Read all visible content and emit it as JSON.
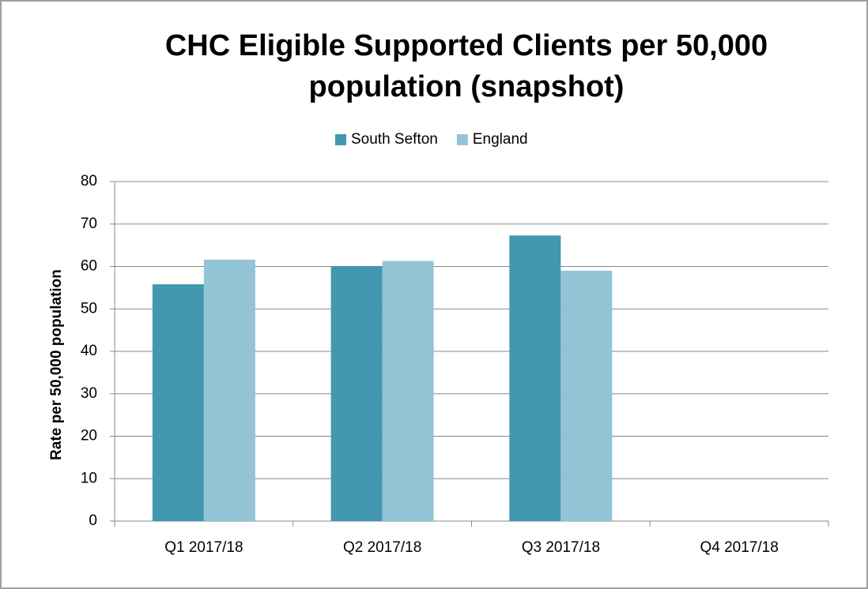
{
  "chart_data": {
    "type": "bar",
    "title": "CHC Eligible Supported Clients per 50,000 population (snapshot)",
    "y_label": "Rate per 50,000 population",
    "categories": [
      "Q1 2017/18",
      "Q2 2017/18",
      "Q3 2017/18",
      "Q4 2017/18"
    ],
    "series": [
      {
        "name": "South Sefton",
        "color": "#4198b0",
        "values": [
          55.8,
          60.1,
          67.3,
          null
        ]
      },
      {
        "name": "England",
        "color": "#93c4d6",
        "values": [
          61.6,
          61.3,
          59.0,
          null
        ]
      }
    ],
    "ylim": [
      0,
      80
    ],
    "yticks": [
      0,
      10,
      20,
      30,
      40,
      50,
      60,
      70,
      80
    ],
    "grid": true,
    "legend": "top"
  }
}
